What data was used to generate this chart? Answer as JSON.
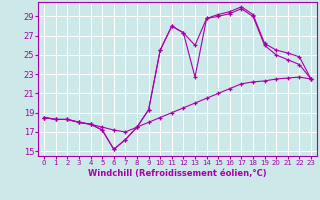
{
  "xlabel": "Windchill (Refroidissement éolien,°C)",
  "xlim": [
    -0.5,
    23.5
  ],
  "ylim": [
    14.5,
    30.5
  ],
  "yticks": [
    15,
    17,
    19,
    21,
    23,
    25,
    27,
    29
  ],
  "xticks": [
    0,
    1,
    2,
    3,
    4,
    5,
    6,
    7,
    8,
    9,
    10,
    11,
    12,
    13,
    14,
    15,
    16,
    17,
    18,
    19,
    20,
    21,
    22,
    23
  ],
  "bg_color": "#cce8e8",
  "grid_color": "#ffffff",
  "line_color": "#aa00aa",
  "line1_x": [
    0,
    1,
    2,
    3,
    4,
    5,
    6,
    7,
    8,
    9,
    10,
    11,
    12,
    13,
    14,
    15,
    16,
    17,
    18,
    19,
    20,
    21,
    22,
    23
  ],
  "line1_y": [
    18.5,
    18.3,
    18.3,
    18.0,
    17.8,
    17.5,
    17.2,
    17.0,
    17.5,
    18.0,
    18.5,
    19.0,
    19.5,
    20.0,
    20.5,
    21.0,
    21.5,
    22.0,
    22.2,
    22.3,
    22.5,
    22.6,
    22.7,
    22.5
  ],
  "line2_x": [
    0,
    1,
    2,
    3,
    4,
    5,
    6,
    7,
    8,
    9,
    10,
    11,
    12,
    13,
    14,
    15,
    16,
    17,
    18,
    19,
    20,
    21,
    22,
    23
  ],
  "line2_y": [
    18.5,
    18.3,
    18.3,
    18.0,
    17.8,
    17.2,
    15.2,
    16.2,
    17.5,
    19.3,
    25.5,
    28.0,
    27.3,
    22.7,
    28.8,
    29.0,
    29.3,
    29.8,
    29.0,
    26.0,
    25.0,
    24.5,
    24.0,
    22.5
  ],
  "line3_x": [
    0,
    1,
    2,
    3,
    4,
    5,
    6,
    7,
    8,
    9,
    10,
    11,
    12,
    13,
    14,
    15,
    16,
    17,
    18,
    19,
    20,
    21,
    22,
    23
  ],
  "line3_y": [
    18.5,
    18.3,
    18.3,
    18.0,
    17.8,
    17.2,
    15.2,
    16.2,
    17.5,
    19.3,
    25.5,
    28.0,
    27.3,
    26.0,
    28.8,
    29.2,
    29.5,
    30.0,
    29.2,
    26.2,
    25.5,
    25.2,
    24.8,
    22.5
  ]
}
